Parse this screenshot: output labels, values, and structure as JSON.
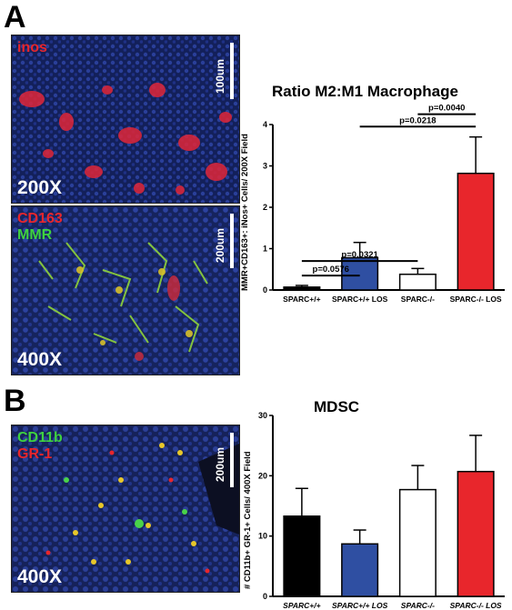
{
  "panels": {
    "a_letter": "A",
    "b_letter": "B"
  },
  "micrographs": {
    "top": {
      "stain1": "inos",
      "stain1_color": "#e8262c",
      "scale": "100um",
      "magnification": "200X"
    },
    "mid": {
      "stain1": "CD163",
      "stain1_color": "#e8262c",
      "stain2": "MMR",
      "stain2_color": "#3fd23f",
      "scale": "200um",
      "magnification": "400X"
    },
    "bottom": {
      "stain1": "CD11b",
      "stain1_color": "#3fd23f",
      "stain2": "GR-1",
      "stain2_color": "#e8262c",
      "scale": "200um",
      "magnification": "400X"
    }
  },
  "chart_data": [
    {
      "type": "bar",
      "title": "Ratio M2:M1 Macrophage",
      "ylabel": "MMR+CD163+: iNos+ Cells/ 200X Field",
      "ylim": [
        0,
        4
      ],
      "yticks": [
        "0",
        "1",
        "2",
        "3",
        "4"
      ],
      "categories": [
        "SPARC+/+",
        "SPARC+/+ LOS",
        "SPARC-/-",
        "SPARC-/- LOS"
      ],
      "values": [
        0.07,
        0.78,
        0.38,
        2.82
      ],
      "errors": [
        0.04,
        0.37,
        0.14,
        0.88
      ],
      "colors": [
        "#000000",
        "#2f4fa2",
        "#ffffff",
        "#e8262c"
      ],
      "italic_labels": false,
      "annotations": [
        {
          "text": "p=0.0576",
          "from": 0,
          "to": 1,
          "y": 0.35
        },
        {
          "text": "p=0.0321",
          "from": 0,
          "to": 2,
          "y": 0.7
        },
        {
          "text": "p=0.0218",
          "from": 1,
          "to": 3,
          "y": 3.95
        },
        {
          "text": "p=0.0040",
          "from": 2,
          "to": 3,
          "y": 4.25
        }
      ]
    },
    {
      "type": "bar",
      "title": "MDSC",
      "ylabel": "# CD11b+ GR-1+ Cells/ 400X Field",
      "ylim": [
        0,
        30
      ],
      "yticks": [
        "0",
        "10",
        "20",
        "30"
      ],
      "categories": [
        "SPARC+/+",
        "SPARC+/+ LOS",
        "SPARC-/-",
        "SPARC-/- LOS"
      ],
      "values": [
        13.3,
        8.7,
        17.7,
        20.7
      ],
      "errors": [
        4.6,
        2.3,
        4.0,
        6.0
      ],
      "colors": [
        "#000000",
        "#2f4fa2",
        "#ffffff",
        "#e8262c"
      ],
      "italic_labels": true,
      "annotations": []
    }
  ]
}
